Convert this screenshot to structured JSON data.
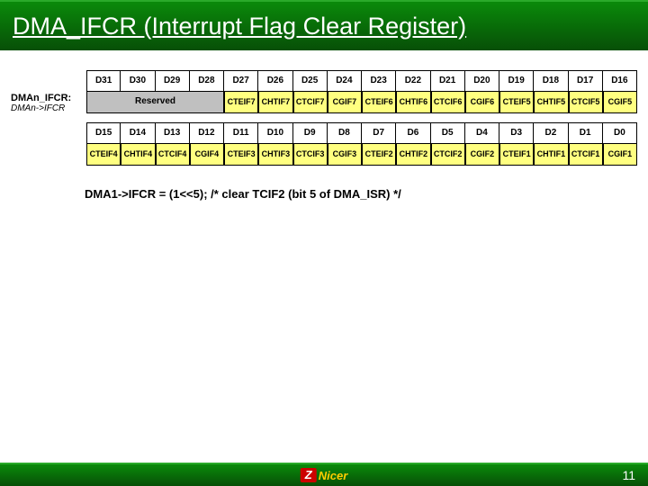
{
  "title": "DMA_IFCR (Interrupt Flag Clear Register)",
  "colors": {
    "header_bg": "#ffffff",
    "reserved_bg": "#c0c0c0",
    "field_bg": "#ffff80",
    "border": "#000000",
    "bar_gradient_top": "#0a8a0a",
    "bar_gradient_bot": "#074f07"
  },
  "register": {
    "label1": "DMAn_IFCR:",
    "label2": "DMAn->IFCR",
    "high_bits": [
      "D31",
      "D30",
      "D29",
      "D28",
      "D27",
      "D26",
      "D25",
      "D24",
      "D23",
      "D22",
      "D21",
      "D20",
      "D19",
      "D18",
      "D17",
      "D16"
    ],
    "high_fields": {
      "reserved_span": 4,
      "reserved_label": "Reserved",
      "cells": [
        "CTEIF7",
        "CHTIF7",
        "CTCIF7",
        "CGIF7",
        "CTEIF6",
        "CHTIF6",
        "CTCIF6",
        "CGIF6",
        "CTEIF5",
        "CHTIF5",
        "CTCIF5",
        "CGIF5"
      ]
    },
    "low_bits": [
      "D15",
      "D14",
      "D13",
      "D12",
      "D11",
      "D10",
      "D9",
      "D8",
      "D7",
      "D6",
      "D5",
      "D4",
      "D3",
      "D2",
      "D1",
      "D0"
    ],
    "low_fields": [
      "CTEIF4",
      "CHTIF4",
      "CTCIF4",
      "CGIF4",
      "CTEIF3",
      "CHTIF3",
      "CTCIF3",
      "CGIF3",
      "CTEIF2",
      "CHTIF2",
      "CTCIF2",
      "CGIF2",
      "CTEIF1",
      "CHTIF1",
      "CTCIF1",
      "CGIF1"
    ]
  },
  "code_example": "DMA1->IFCR = (1<<5); /* clear TCIF2 (bit 5 of DMA_ISR) */",
  "footer": {
    "logo_letter": "Z",
    "logo_text": "Nicer",
    "page": "11"
  }
}
